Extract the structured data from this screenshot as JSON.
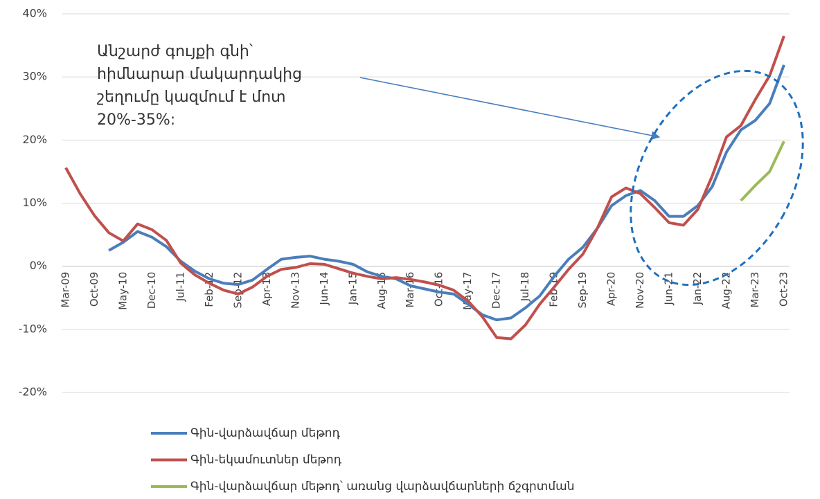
{
  "chart_data": {
    "type": "line",
    "annotation": [
      "Անշարժ գույքի գնի՝",
      "հիմնարար մակարդակից",
      "շեղումը կազմում է մոտ",
      "20%-35%:"
    ],
    "categories": [
      "Mar-09",
      null,
      "Oct-09",
      null,
      "May-10",
      null,
      "Dec-10",
      null,
      "Jul-11",
      null,
      "Feb-12",
      null,
      "Sep-12",
      null,
      "Apr-13",
      null,
      "Nov-13",
      null,
      "Jun-14",
      null,
      "Jan-15",
      null,
      "Aug-15",
      null,
      "Mar-16",
      null,
      "Oct-16",
      null,
      "May-17",
      null,
      "Dec-17",
      null,
      "Jul-18",
      null,
      "Feb-19",
      null,
      "Sep-19",
      null,
      "Apr-20",
      null,
      "Nov-20",
      null,
      "Jun-21",
      null,
      "Jan-22",
      null,
      "Aug-22",
      null,
      "Mar-23",
      null,
      "Oct-23"
    ],
    "series": [
      {
        "name": "Գին-վարձավճար մեթոդ",
        "color": "#4a7ebb",
        "values": [
          null,
          null,
          null,
          2.5,
          3.8,
          5.5,
          4.6,
          3.1,
          0.8,
          -0.8,
          -2.0,
          -2.7,
          -2.9,
          -2.2,
          -0.5,
          1.1,
          1.4,
          1.6,
          1.1,
          0.8,
          0.3,
          -0.9,
          -1.6,
          -2.0,
          -3.1,
          -3.6,
          -4.1,
          -4.4,
          -6.0,
          -7.7,
          -8.5,
          -8.2,
          -6.6,
          -4.7,
          -1.6,
          1.1,
          3.0,
          6.0,
          9.6,
          11.2,
          12.0,
          10.4,
          7.9,
          7.9,
          9.6,
          12.6,
          18.1,
          21.6,
          23.1,
          25.8,
          31.9
        ]
      },
      {
        "name": "Գին-եկամուտներ մեթոդ",
        "color": "#c0504d",
        "values": [
          15.6,
          11.5,
          8.0,
          5.3,
          4.0,
          6.7,
          5.8,
          4.1,
          0.5,
          -1.4,
          -2.7,
          -3.8,
          -4.4,
          -3.3,
          -1.6,
          -0.5,
          -0.2,
          0.4,
          0.3,
          -0.4,
          -1.1,
          -1.6,
          -2.0,
          -1.8,
          -2.1,
          -2.5,
          -3.0,
          -3.8,
          -5.5,
          -8.0,
          -11.3,
          -11.5,
          -9.3,
          -6.0,
          -3.3,
          -0.5,
          1.9,
          6.0,
          11.0,
          12.4,
          11.5,
          9.3,
          6.9,
          6.5,
          9.0,
          14.3,
          20.5,
          22.3,
          26.4,
          30.2,
          36.5
        ]
      },
      {
        "name": "Գին-վարձավճար մեթոդ՝ առանց վարձավճարների ճշգրտման",
        "color": "#9bbb59",
        "values": [
          null,
          null,
          null,
          null,
          null,
          null,
          null,
          null,
          null,
          null,
          null,
          null,
          null,
          null,
          null,
          null,
          null,
          null,
          null,
          null,
          null,
          null,
          null,
          null,
          null,
          null,
          null,
          null,
          null,
          null,
          null,
          null,
          null,
          null,
          null,
          null,
          null,
          null,
          null,
          null,
          null,
          null,
          null,
          null,
          null,
          null,
          null,
          10.4,
          12.8,
          15.0,
          19.8
        ]
      }
    ],
    "ylim": [
      -20,
      40
    ],
    "yticks": [
      {
        "value": -20,
        "label": "-20%"
      },
      {
        "value": -10,
        "label": "-10%"
      },
      {
        "value": 0,
        "label": "0%"
      },
      {
        "value": 10,
        "label": "10%"
      },
      {
        "value": 20,
        "label": "20%"
      },
      {
        "value": 30,
        "label": "30%"
      },
      {
        "value": 40,
        "label": "40%"
      }
    ],
    "grid": true
  }
}
